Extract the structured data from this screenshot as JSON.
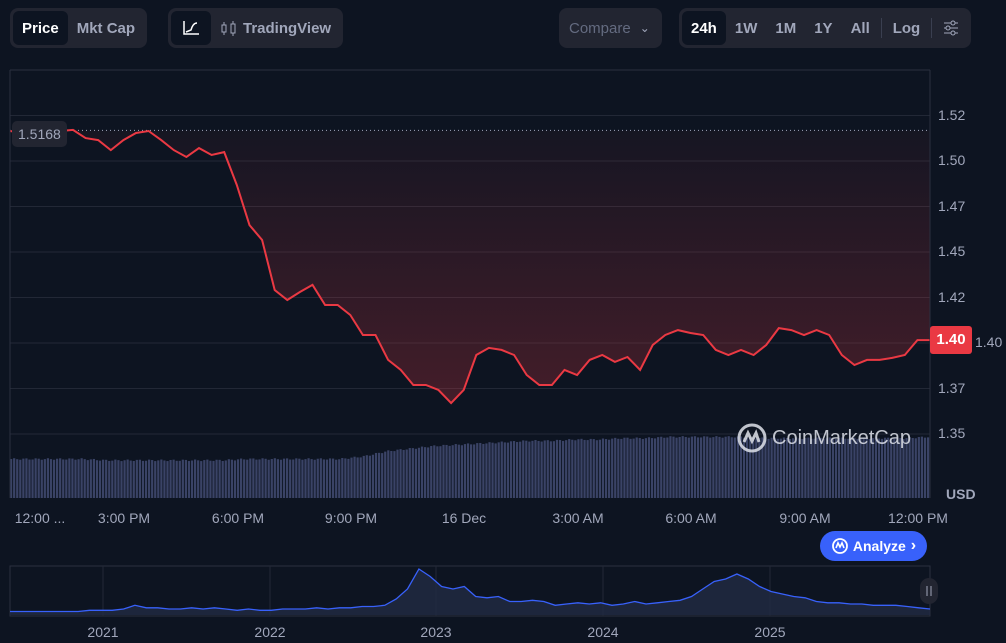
{
  "toolbar": {
    "metric_tabs": [
      "Price",
      "Mkt Cap"
    ],
    "active_metric": "Price",
    "chart_type_icon": "line-chart-icon",
    "tradingview_label": "TradingView",
    "compare_label": "Compare",
    "ranges": [
      "24h",
      "1W",
      "1M",
      "1Y",
      "All"
    ],
    "active_range": "24h",
    "log_label": "Log",
    "settings_icon": "sliders-icon"
  },
  "chart_data": {
    "type": "line",
    "currency_label": "USD",
    "y_ticks": [
      "1.52",
      "1.50",
      "1.47",
      "1.45",
      "1.42",
      "1.40",
      "1.37",
      "1.35"
    ],
    "y_tick_values": [
      1.525,
      1.5,
      1.475,
      1.45,
      1.425,
      1.4,
      1.375,
      1.35
    ],
    "x_ticks": [
      "12:00 ...",
      "3:00 PM",
      "6:00 PM",
      "9:00 PM",
      "16 Dec",
      "3:00 AM",
      "6:00 AM",
      "9:00 AM",
      "12:00 PM"
    ],
    "open_price_label": "1.5168",
    "open_price": 1.5168,
    "current_price_label": "1.40",
    "current_price": 1.4016,
    "line_color": "#ea3943",
    "volume_color": "#3a4366",
    "prices": [
      1.5165,
      1.5154,
      1.5159,
      1.5148,
      1.5165,
      1.5171,
      1.5126,
      1.5115,
      1.506,
      1.5115,
      1.5154,
      1.5165,
      1.5115,
      1.506,
      1.5022,
      1.5071,
      1.5033,
      1.5049,
      1.4868,
      1.4648,
      1.4566,
      1.4291,
      1.4236,
      1.428,
      1.4319,
      1.4209,
      1.4209,
      1.4154,
      1.4044,
      1.4044,
      1.3907,
      1.3852,
      1.3769,
      1.3769,
      1.3742,
      1.367,
      1.3742,
      1.3934,
      1.3973,
      1.3962,
      1.3934,
      1.3824,
      1.3769,
      1.3769,
      1.3852,
      1.3824,
      1.3907,
      1.3934,
      1.3896,
      1.3923,
      1.3852,
      1.3989,
      1.4044,
      1.4071,
      1.4055,
      1.4044,
      1.3962,
      1.3934,
      1.3962,
      1.3934,
      1.3989,
      1.4082,
      1.4071,
      1.4044,
      1.4071,
      1.4044,
      1.3934,
      1.3879,
      1.3907,
      1.3907,
      1.3918,
      1.3934,
      1.4016,
      1.4016
    ],
    "volume": [
      30,
      30,
      30,
      30,
      29,
      29,
      29,
      29,
      29,
      29,
      30,
      30,
      30,
      30,
      30,
      32,
      36,
      38,
      40,
      41,
      42,
      43,
      44,
      44,
      45,
      45,
      46,
      46,
      47,
      47,
      47,
      47,
      46,
      46,
      46,
      46,
      46,
      46,
      46,
      47
    ],
    "navigator": {
      "year_labels": [
        "2021",
        "2022",
        "2023",
        "2024",
        "2025"
      ],
      "series": [
        2,
        2,
        2,
        2,
        2,
        2,
        2,
        3,
        3,
        3,
        4,
        7,
        5,
        5,
        4,
        4,
        5,
        4,
        5,
        4,
        3,
        4,
        3,
        3,
        4,
        4,
        4,
        5,
        4,
        5,
        5,
        6,
        6,
        7,
        12,
        20,
        36,
        30,
        22,
        20,
        22,
        14,
        13,
        14,
        10,
        10,
        11,
        10,
        7,
        8,
        9,
        8,
        9,
        7,
        8,
        10,
        8,
        9,
        10,
        11,
        14,
        20,
        26,
        28,
        32,
        28,
        22,
        18,
        16,
        14,
        13,
        10,
        9,
        9,
        8,
        8,
        7,
        7,
        7,
        6,
        5,
        4
      ]
    },
    "watermark": "CoinMarketCap"
  },
  "analyze_button": {
    "label": "Analyze",
    "icon": "coinmarketcap-logo-icon",
    "chevron": "›"
  },
  "pause_icon": "pause-icon"
}
